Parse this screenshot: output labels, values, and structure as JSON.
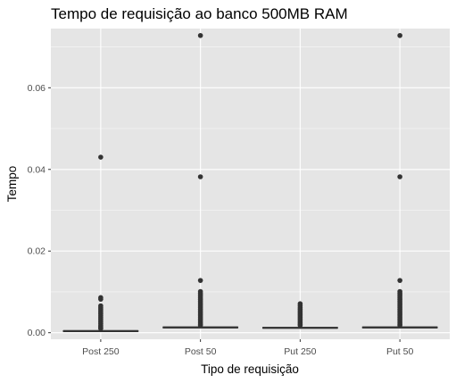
{
  "chart_data": {
    "type": "boxplot",
    "title": "Tempo de requisição ao banco 500MB RAM",
    "xlabel": "Tipo de requisição",
    "ylabel": "Tempo",
    "ylim": [
      -0.0016,
      0.0745
    ],
    "y_ticks": [
      0.0,
      0.02,
      0.04,
      0.06
    ],
    "y_tick_labels": [
      "0.00",
      "0.02",
      "0.04",
      "0.06"
    ],
    "categories": [
      "Post 250",
      "Post 50",
      "Put 250",
      "Put 50"
    ],
    "boxes": [
      {
        "category": "Post 250",
        "median": 0.0004,
        "q1": 0.0003,
        "q3": 0.0005,
        "whisker_low": 0.0002,
        "whisker_high": 0.0007,
        "outliers": [
          0.043,
          0.0086,
          0.0082,
          0.0066,
          0.0062,
          0.0058,
          0.0054,
          0.005,
          0.0046,
          0.0042,
          0.0038,
          0.0034,
          0.003,
          0.0026,
          0.0022,
          0.0018,
          0.0015,
          0.0012,
          0.001
        ]
      },
      {
        "category": "Post 50",
        "median": 0.0013,
        "q1": 0.0012,
        "q3": 0.0014,
        "whisker_low": 0.0011,
        "whisker_high": 0.0016,
        "outliers": [
          0.0728,
          0.0382,
          0.0128,
          0.0101,
          0.0097,
          0.0093,
          0.0089,
          0.0085,
          0.0081,
          0.0077,
          0.0073,
          0.0069,
          0.0065,
          0.0061,
          0.0057,
          0.0053,
          0.0049,
          0.0045,
          0.0041,
          0.0037,
          0.0033,
          0.0029,
          0.0025,
          0.0021,
          0.0018
        ]
      },
      {
        "category": "Put 250",
        "median": 0.0012,
        "q1": 0.0011,
        "q3": 0.0013,
        "whisker_low": 0.001,
        "whisker_high": 0.0015,
        "outliers": [
          0.0071,
          0.0066,
          0.0061,
          0.0057,
          0.0053,
          0.0049,
          0.0045,
          0.0041,
          0.0037,
          0.0033,
          0.0029,
          0.0025,
          0.0021,
          0.0018
        ]
      },
      {
        "category": "Put 50",
        "median": 0.0013,
        "q1": 0.0012,
        "q3": 0.0014,
        "whisker_low": 0.0011,
        "whisker_high": 0.0016,
        "outliers": [
          0.0728,
          0.0382,
          0.0128,
          0.0101,
          0.0097,
          0.0093,
          0.0089,
          0.0085,
          0.0081,
          0.0077,
          0.0073,
          0.0069,
          0.0065,
          0.0061,
          0.0057,
          0.0053,
          0.0049,
          0.0045,
          0.0041,
          0.0037,
          0.0033,
          0.0029,
          0.0025,
          0.0021,
          0.0018
        ]
      }
    ],
    "grid": true,
    "legend": "none",
    "colors": {
      "panel_background": "#e5e5e5",
      "grid_major": "#ffffff",
      "box_stroke": "#333333",
      "outlier_fill": "#333333",
      "tick_label": "#4d4d4d"
    }
  }
}
